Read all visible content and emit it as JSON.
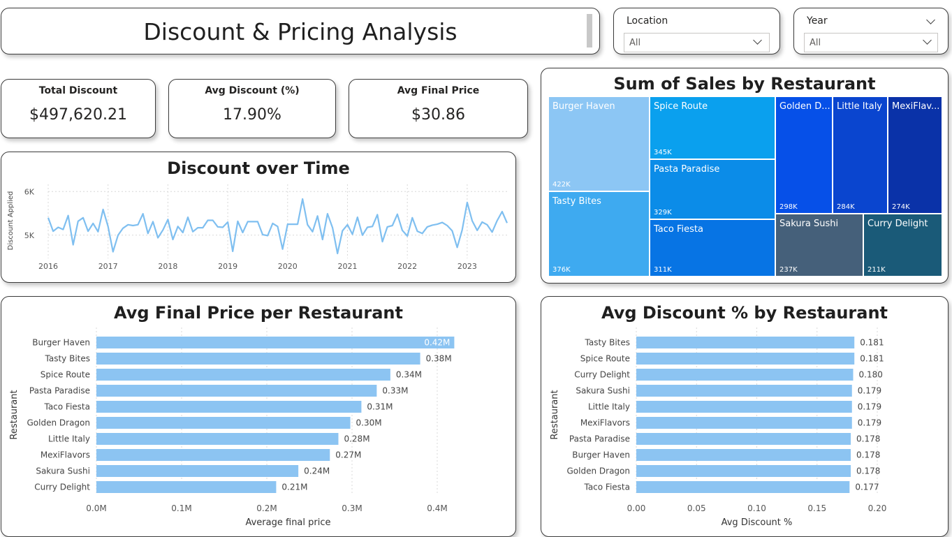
{
  "title": "Discount & Pricing Analysis",
  "slicers": {
    "location": {
      "label": "Location",
      "value": "All"
    },
    "year": {
      "label": "Year",
      "value": "All"
    }
  },
  "kpis": [
    {
      "label": "Total Discount",
      "value": "$497,620.21"
    },
    {
      "label": "Avg Discount (%)",
      "value": "17.90%"
    },
    {
      "label": "Avg Final Price",
      "value": "$30.86"
    }
  ],
  "colors": {
    "bar": "#8cc4f2",
    "line": "#7fbff0",
    "grid": "#d8d8d8"
  },
  "chart_data": [
    {
      "id": "discount_over_time",
      "type": "line",
      "title": "Discount over Time",
      "xlabel": "",
      "ylabel": "Discount Applied",
      "x_ticks": [
        "2016",
        "2017",
        "2018",
        "2019",
        "2020",
        "2021",
        "2022",
        "2023"
      ],
      "y_ticks": [
        "6K",
        "5K"
      ],
      "ylim": [
        4500,
        6100
      ],
      "start": "2016-01",
      "values": [
        5400,
        5090,
        5180,
        5130,
        5450,
        4780,
        5320,
        5400,
        5090,
        5270,
        5080,
        5590,
        5200,
        4620,
        5000,
        5160,
        5240,
        5220,
        5240,
        5490,
        5040,
        5310,
        4940,
        5120,
        5360,
        4900,
        5200,
        5060,
        5410,
        5080,
        5170,
        5170,
        5340,
        5340,
        5190,
        5180,
        5300,
        4630,
        5320,
        5060,
        5310,
        5310,
        5310,
        5010,
        4990,
        5270,
        5200,
        4680,
        5250,
        5250,
        5250,
        5830,
        5240,
        5080,
        5440,
        4900,
        5490,
        5170,
        4580,
        5100,
        5240,
        5020,
        5410,
        5000,
        5180,
        5200,
        5470,
        4850,
        5190,
        5220,
        5480,
        5110,
        4980,
        5400,
        5090,
        5040,
        5190,
        5230,
        5250,
        5290,
        5220,
        5100,
        4720,
        5120,
        5750,
        5330,
        5110,
        5300,
        5240,
        5070,
        5330,
        5540,
        5280
      ]
    },
    {
      "id": "treemap_sales",
      "type": "treemap",
      "title": "Sum of Sales by Restaurant",
      "items": [
        {
          "name": "Burger Haven",
          "label": "Burger Haven",
          "value": "422K",
          "color": "#8cc6f4"
        },
        {
          "name": "Tasty Bites",
          "label": "Tasty Bites",
          "value": "376K",
          "color": "#3eaaf0"
        },
        {
          "name": "Spice Route",
          "label": "Spice Route",
          "value": "345K",
          "color": "#0aa0ee"
        },
        {
          "name": "Pasta Paradise",
          "label": "Pasta Paradise",
          "value": "329K",
          "color": "#0b8ce8"
        },
        {
          "name": "Taco Fiesta",
          "label": "Taco Fiesta",
          "value": "311K",
          "color": "#0774e4"
        },
        {
          "name": "Golden Dragon",
          "label": "Golden D...",
          "value": "298K",
          "color": "#0650e8"
        },
        {
          "name": "Little Italy",
          "label": "Little Italy",
          "value": "284K",
          "color": "#0a45cf"
        },
        {
          "name": "MexiFlavors",
          "label": "MexiFlav...",
          "value": "274K",
          "color": "#0a32a8"
        },
        {
          "name": "Sakura Sushi",
          "label": "Sakura Sushi",
          "value": "237K",
          "color": "#45607a"
        },
        {
          "name": "Curry Delight",
          "label": "Curry Delight",
          "value": "211K",
          "color": "#1a5a78"
        }
      ]
    },
    {
      "id": "avg_final_price",
      "type": "bar",
      "orientation": "horizontal",
      "title": "Avg Final Price per Restaurant",
      "xlabel": "Average final price",
      "ylabel": "Restaurant",
      "categories": [
        "Burger Haven",
        "Tasty Bites",
        "Spice Route",
        "Pasta Paradise",
        "Taco Fiesta",
        "Golden Dragon",
        "Little Italy",
        "MexiFlavors",
        "Sakura Sushi",
        "Curry Delight"
      ],
      "values": [
        0.42,
        0.38,
        0.345,
        0.329,
        0.311,
        0.298,
        0.284,
        0.274,
        0.237,
        0.211
      ],
      "labels": [
        "0.42M",
        "0.38M",
        "0.34M",
        "0.33M",
        "0.31M",
        "0.30M",
        "0.28M",
        "0.27M",
        "0.24M",
        "0.21M"
      ],
      "xlim": [
        0,
        0.45
      ],
      "x_ticks": [
        0,
        0.1,
        0.2,
        0.3,
        0.4
      ],
      "x_tick_labels": [
        "0.0M",
        "0.1M",
        "0.2M",
        "0.3M",
        "0.4M"
      ]
    },
    {
      "id": "avg_discount_pct",
      "type": "bar",
      "orientation": "horizontal",
      "title": "Avg Discount % by Restaurant",
      "xlabel": "Avg Discount %",
      "ylabel": "Restaurant",
      "categories": [
        "Tasty Bites",
        "Spice Route",
        "Curry Delight",
        "Sakura Sushi",
        "Little Italy",
        "MexiFlavors",
        "Pasta Paradise",
        "Burger Haven",
        "Golden Dragon",
        "Taco Fiesta"
      ],
      "values": [
        0.181,
        0.181,
        0.18,
        0.179,
        0.179,
        0.179,
        0.178,
        0.178,
        0.178,
        0.177
      ],
      "labels": [
        "0.181",
        "0.181",
        "0.180",
        "0.179",
        "0.179",
        "0.179",
        "0.178",
        "0.178",
        "0.178",
        "0.177"
      ],
      "xlim": [
        0,
        0.2
      ],
      "x_ticks": [
        0,
        0.05,
        0.1,
        0.15,
        0.2
      ],
      "x_tick_labels": [
        "0.00",
        "0.05",
        "0.10",
        "0.15",
        "0.20"
      ]
    }
  ]
}
